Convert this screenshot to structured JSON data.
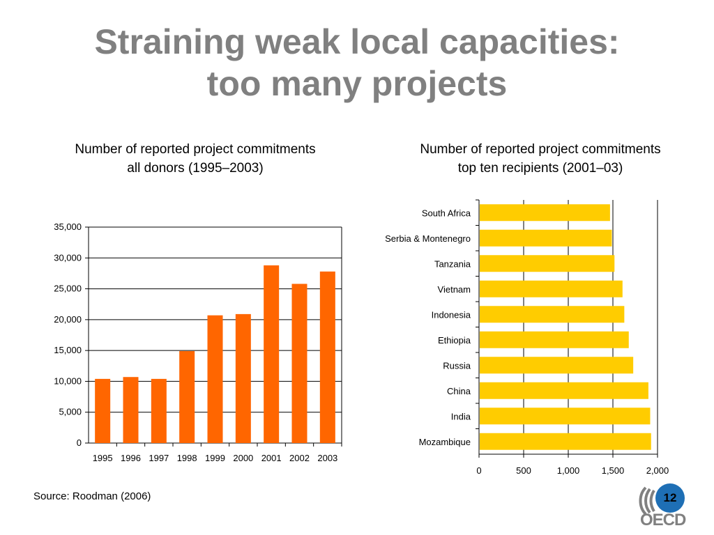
{
  "slide": {
    "title_line1": "Straining weak local capacities:",
    "title_line2": "too many projects",
    "source": "Source: Roodman (2006)",
    "page_number": "12",
    "logo_text": "OECD"
  },
  "colors": {
    "title": "#808080",
    "left_bars": "#ff6600",
    "right_bars": "#ffcc00",
    "page_badge": "#1e6fb5"
  },
  "chart_data": [
    {
      "type": "bar",
      "title": "Number of reported project commitments",
      "subtitle": "all donors (1995–2003)",
      "categories": [
        "1995",
        "1996",
        "1997",
        "1998",
        "1999",
        "2000",
        "2001",
        "2002",
        "2003"
      ],
      "values": [
        10400,
        10700,
        10400,
        14900,
        20700,
        20900,
        28800,
        25800,
        27800
      ],
      "ylim": [
        0,
        35000
      ],
      "yticks": [
        "0",
        "5,000",
        "10,000",
        "15,000",
        "20,000",
        "25,000",
        "30,000",
        "35,000"
      ],
      "grid": true
    },
    {
      "type": "bar",
      "orientation": "horizontal",
      "title": "Number of reported project commitments",
      "subtitle": "top ten recipients (2001–03)",
      "categories": [
        "South Africa",
        "Serbia & Montenegro",
        "Tanzania",
        "Vietnam",
        "Indonesia",
        "Ethiopia",
        "Russia",
        "China",
        "India",
        "Mozambique"
      ],
      "values": [
        1460,
        1480,
        1510,
        1600,
        1620,
        1670,
        1720,
        1890,
        1910,
        1920
      ],
      "xlim": [
        0,
        2000
      ],
      "xticks": [
        "0",
        "500",
        "1,000",
        "1,500",
        "2,000"
      ],
      "grid": true
    }
  ]
}
